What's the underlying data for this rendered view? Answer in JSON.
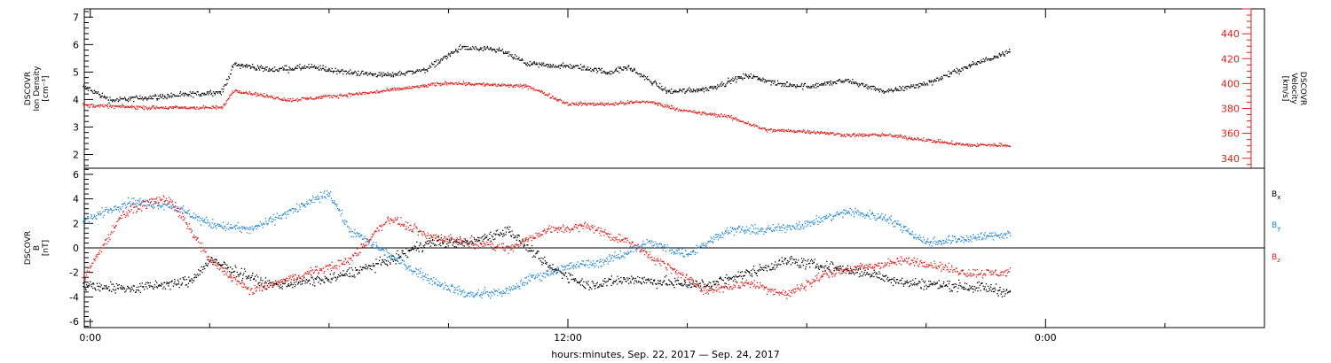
{
  "footer": {
    "xlabel": "hours:minutes, Sep. 22, 2017 — Sep. 24, 2017"
  },
  "colors": {
    "black": "#000000",
    "red": "#e0201c",
    "blue": "#1e86d8"
  },
  "chart_data": [
    {
      "type": "scatter",
      "panel": "top",
      "y_left": {
        "label_lines": [
          "DSCOVR",
          "Ion Density",
          "[cm⁻³]"
        ],
        "lim": [
          1.5,
          7.3
        ],
        "ticks": [
          2,
          3,
          4,
          5,
          6,
          7
        ],
        "tick_labels": [
          "2",
          "3",
          "4",
          "5",
          "6",
          "7"
        ]
      },
      "y_right": {
        "label_lines": [
          "DSCOVR",
          "Velocity",
          "[km/s]"
        ],
        "lim": [
          332,
          460
        ],
        "ticks": [
          340,
          360,
          380,
          400,
          420,
          440
        ],
        "tick_labels": [
          "340",
          "360",
          "380",
          "400",
          "420",
          "440"
        ]
      },
      "series": [
        {
          "color": "black",
          "axis": "left",
          "noise": 0.08,
          "t_range": [
            -0.2,
            23.1
          ],
          "x": [
            -0.2,
            0.5,
            1.5,
            2.5,
            3.3,
            3.6,
            4.5,
            5.5,
            6.5,
            7.5,
            8.4,
            9.3,
            10.3,
            11.0,
            12.3,
            13.0,
            13.5,
            14.5,
            15.5,
            16.5,
            17.2,
            18.0,
            19.0,
            20.0,
            21.0,
            22.0,
            23.1
          ],
          "y": [
            4.5,
            4.0,
            4.1,
            4.2,
            4.3,
            5.3,
            5.1,
            5.2,
            5.0,
            4.9,
            5.1,
            5.9,
            5.8,
            5.3,
            5.2,
            5.0,
            5.2,
            4.3,
            4.4,
            4.9,
            4.6,
            4.5,
            4.7,
            4.3,
            4.6,
            5.2,
            5.8
          ]
        },
        {
          "color": "red",
          "axis": "right",
          "noise": 1.2,
          "t_range": [
            -0.2,
            23.1
          ],
          "x": [
            -0.2,
            1.5,
            3.3,
            3.6,
            5.0,
            7.0,
            8.0,
            9.0,
            11.0,
            12.0,
            13.0,
            14.0,
            15.0,
            16.0,
            17.0,
            18.0,
            19.0,
            20.0,
            21.0,
            22.0,
            23.1
          ],
          "y": [
            383,
            381,
            381,
            395,
            387,
            393,
            397,
            401,
            398,
            384,
            384,
            386,
            378,
            374,
            363,
            362,
            359,
            359,
            355,
            351,
            351
          ]
        }
      ]
    },
    {
      "type": "scatter",
      "panel": "bottom",
      "y_left": {
        "label_lines": [
          "DSCOVR",
          "B",
          "[nT]"
        ],
        "lim": [
          -6.5,
          6.5
        ],
        "ticks": [
          -6,
          -4,
          -2,
          0,
          2,
          4,
          6
        ],
        "tick_labels": [
          "-6",
          "-4",
          "-2",
          "0",
          "2",
          "4",
          "6"
        ]
      },
      "zero_line": 0,
      "series": [
        {
          "name": "Bx",
          "color": "black",
          "noise": 0.35,
          "t_range": [
            -0.2,
            23.1
          ],
          "x": [
            -0.2,
            1.0,
            2.5,
            3.0,
            4.5,
            6.0,
            7.5,
            8.5,
            9.5,
            10.5,
            11.5,
            12.5,
            13.5,
            14.5,
            15.5,
            16.5,
            17.5,
            18.5,
            19.5,
            20.5,
            21.5,
            22.5,
            23.1
          ],
          "y": [
            -3.0,
            -3.3,
            -2.7,
            -1.0,
            -3.0,
            -2.5,
            -1.0,
            0.5,
            0.5,
            1.5,
            -1.5,
            -3.0,
            -2.5,
            -2.8,
            -3.0,
            -2.0,
            -1.0,
            -1.5,
            -2.0,
            -2.8,
            -3.0,
            -3.2,
            -3.6
          ]
        },
        {
          "name": "By",
          "color": "blue",
          "noise": 0.3,
          "t_range": [
            -0.2,
            23.1
          ],
          "x": [
            -0.2,
            0.5,
            1.0,
            2.0,
            3.0,
            4.0,
            5.0,
            6.0,
            6.5,
            7.5,
            8.5,
            9.5,
            10.5,
            11.0,
            12.0,
            13.0,
            14.0,
            15.0,
            16.0,
            17.0,
            18.0,
            19.0,
            20.0,
            21.0,
            22.0,
            23.1
          ],
          "y": [
            2.2,
            3.2,
            3.8,
            3.5,
            2.0,
            1.5,
            3.0,
            4.5,
            1.5,
            -0.5,
            -2.5,
            -3.8,
            -3.5,
            -2.5,
            -1.5,
            -1.0,
            0.5,
            -0.5,
            1.5,
            1.5,
            2.0,
            3.0,
            2.5,
            0.5,
            0.8,
            1.2
          ]
        },
        {
          "name": "Bz",
          "color": "red",
          "noise": 0.3,
          "t_range": [
            -0.2,
            23.1
          ],
          "x": [
            -0.2,
            0.8,
            1.5,
            2.0,
            3.0,
            4.0,
            5.5,
            6.5,
            7.5,
            8.5,
            9.5,
            10.5,
            11.5,
            12.5,
            13.5,
            14.5,
            15.5,
            16.5,
            17.5,
            18.5,
            19.5,
            20.5,
            21.0,
            22.0,
            23.1
          ],
          "y": [
            -2.5,
            2.8,
            3.8,
            4.0,
            -1.0,
            -3.5,
            -2.0,
            -1.0,
            2.5,
            1.0,
            0.5,
            0.0,
            1.5,
            1.8,
            0.5,
            -1.5,
            -3.5,
            -2.8,
            -3.8,
            -2.0,
            -1.5,
            -1.0,
            -1.2,
            -2.0,
            -2.0
          ]
        }
      ],
      "legend": {
        "placement": "right",
        "entries": [
          "Bx",
          "By",
          "Bz"
        ]
      }
    }
  ],
  "x_axis": {
    "unit": "hours",
    "lim": [
      -0.15,
      29.5
    ],
    "ticks": [
      0,
      12,
      24
    ],
    "tick_labels": [
      "0:00",
      "12:00",
      "0:00"
    ]
  },
  "legend_labels": [
    {
      "base": "B",
      "sub": "x",
      "color": "black"
    },
    {
      "base": "B",
      "sub": "y",
      "color": "blue"
    },
    {
      "base": "B",
      "sub": "z",
      "color": "red"
    }
  ]
}
